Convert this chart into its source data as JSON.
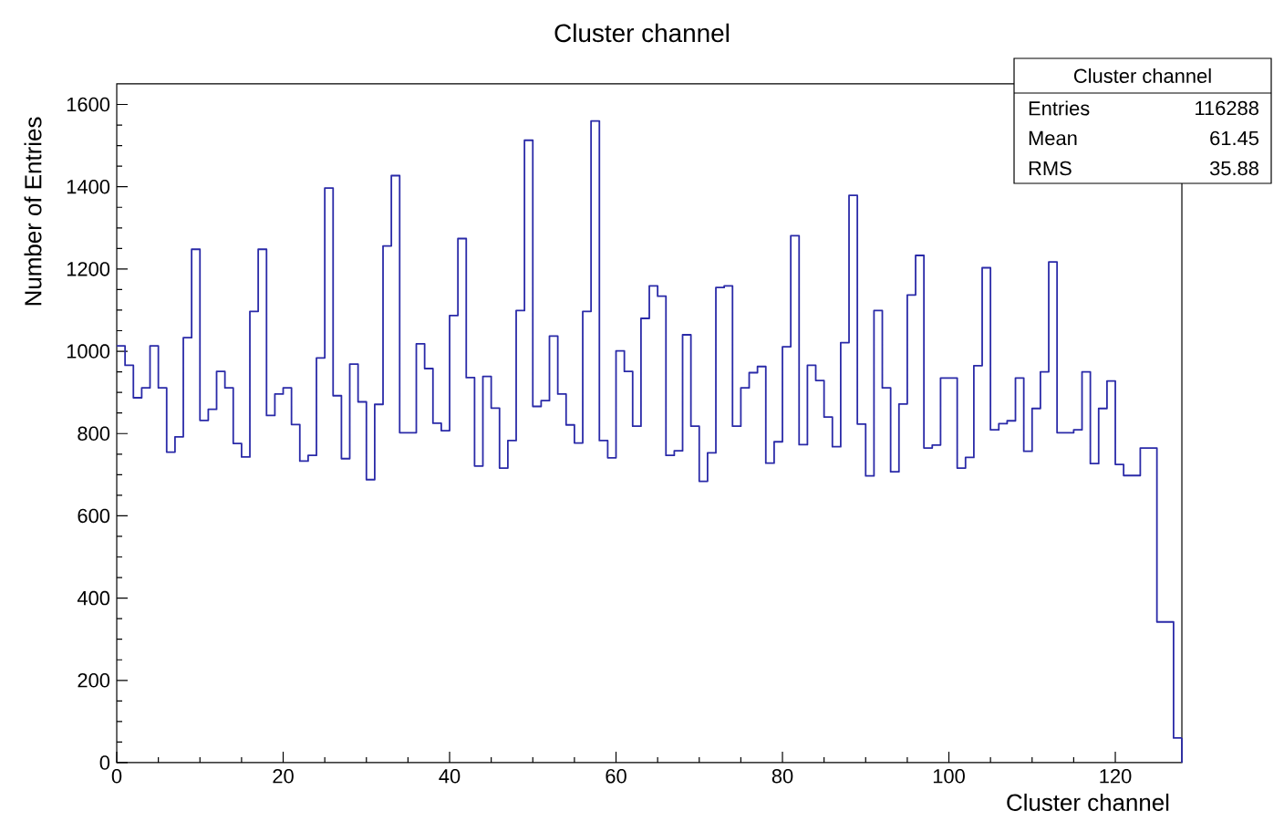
{
  "chart_data": {
    "type": "histogram",
    "title": "Cluster channel",
    "xlabel": "Cluster channel",
    "ylabel": "Number of Entries",
    "bins": [
      0,
      1,
      2,
      3,
      4,
      5,
      6,
      7,
      8,
      9,
      10,
      11,
      12,
      13,
      14,
      15,
      16,
      17,
      18,
      19,
      20,
      21,
      22,
      23,
      24,
      25,
      26,
      27,
      28,
      29,
      30,
      31,
      32,
      33,
      34,
      35,
      36,
      37,
      38,
      39,
      40,
      41,
      42,
      43,
      44,
      45,
      46,
      47,
      48,
      49,
      50,
      51,
      52,
      53,
      54,
      55,
      56,
      57,
      58,
      59,
      60,
      61,
      62,
      63,
      64,
      65,
      66,
      67,
      68,
      69,
      70,
      71,
      72,
      73,
      74,
      75,
      76,
      77,
      78,
      79,
      80,
      81,
      82,
      83,
      84,
      85,
      86,
      87,
      88,
      89,
      90,
      91,
      92,
      93,
      94,
      95,
      96,
      97,
      98,
      99,
      100,
      101,
      102,
      103,
      104,
      105,
      106,
      107,
      108,
      109,
      110,
      111,
      112,
      113,
      114,
      115,
      116,
      117,
      118,
      119,
      120,
      121,
      122,
      123,
      124,
      125,
      126,
      127,
      128
    ],
    "values": [
      1013,
      966,
      887,
      911,
      1013,
      911,
      755,
      792,
      1033,
      1248,
      832,
      859,
      951,
      911,
      776,
      743,
      1097,
      1248,
      844,
      896,
      911,
      822,
      733,
      747,
      984,
      1397,
      892,
      739,
      969,
      877,
      688,
      871,
      1256,
      1427,
      802,
      802,
      1018,
      958,
      825,
      807,
      1087,
      1274,
      936,
      721,
      939,
      862,
      716,
      783,
      1099,
      1513,
      866,
      880,
      1037,
      896,
      821,
      777,
      1097,
      1560,
      783,
      741,
      1001,
      951,
      818,
      1080,
      1159,
      1134,
      747,
      758,
      1040,
      818,
      684,
      753,
      1155,
      1159,
      818,
      911,
      948,
      963,
      728,
      780,
      1011,
      1281,
      773,
      966,
      929,
      840,
      768,
      1021,
      1379,
      823,
      697,
      1099,
      911,
      707,
      872,
      1137,
      1233,
      765,
      772,
      935,
      935,
      716,
      742,
      965,
      1203,
      809,
      824,
      831,
      935,
      757,
      861,
      950,
      1217,
      802,
      802,
      809,
      950,
      727,
      861,
      928,
      725,
      698,
      698,
      765,
      765,
      342,
      342,
      60
    ],
    "color": "#2a2aa8",
    "xlim": [
      0,
      128
    ],
    "ylim": [
      0,
      1650
    ],
    "xticks": [
      0,
      20,
      40,
      60,
      80,
      100,
      120
    ],
    "yticks": [
      0,
      200,
      400,
      600,
      800,
      1000,
      1200,
      1400,
      1600
    ],
    "annotations": [
      "Cluster channel",
      "Entries",
      "116288",
      "Mean",
      "61.45",
      "RMS",
      "35.88"
    ]
  }
}
